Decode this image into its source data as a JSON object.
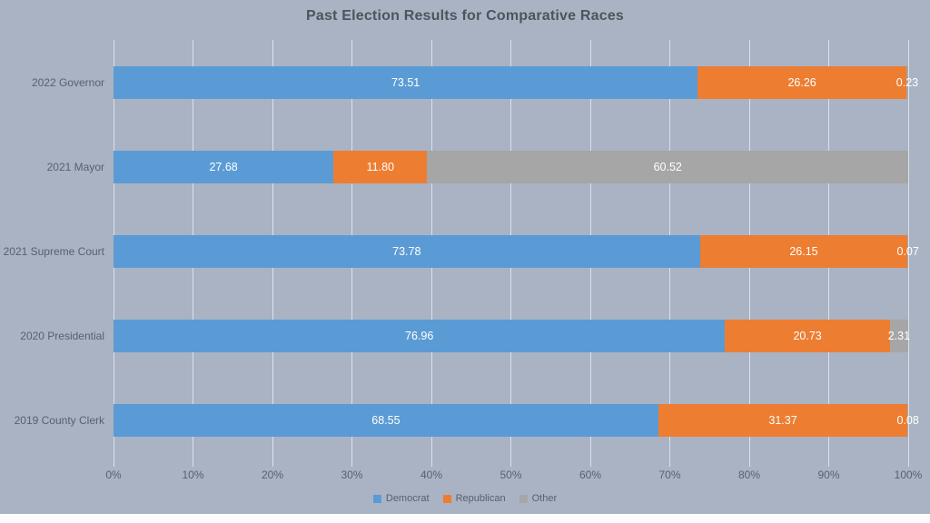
{
  "title": "Past Election Results for Comparative Races",
  "colors": {
    "background": "#a9b3c3",
    "gridline": "#dce1e9",
    "title_text": "#4d545e",
    "axis_text": "#596070",
    "value_text": "#ffffff",
    "democrat": "#5b9bd5",
    "republican": "#ed7d31",
    "other": "#a6a6a6",
    "footer_strip": "#fcfcfc"
  },
  "chart_data": {
    "type": "bar",
    "orientation": "horizontal-stacked",
    "title": "Past Election Results for Comparative Races",
    "categories": [
      "2022 Governor",
      "2021 Mayor",
      "2021 Supreme Court",
      "2020 Presidential",
      "2019 County Clerk"
    ],
    "series": [
      {
        "name": "Democrat",
        "color": "#5b9bd5",
        "values": [
          73.51,
          27.68,
          73.78,
          76.96,
          68.55
        ],
        "labels": [
          "73.51",
          "27.68",
          "73.78",
          "76.96",
          "68.55"
        ]
      },
      {
        "name": "Republican",
        "color": "#ed7d31",
        "values": [
          26.26,
          11.8,
          26.15,
          20.73,
          31.37
        ],
        "labels": [
          "26.26",
          "11.80",
          "26.15",
          "20.73",
          "31.37"
        ]
      },
      {
        "name": "Other",
        "color": "#a6a6a6",
        "values": [
          0.23,
          60.52,
          0.07,
          2.31,
          0.08
        ],
        "labels": [
          "0.23",
          "60.52",
          "0.07",
          "2.31",
          "0.08"
        ]
      }
    ],
    "x_axis": {
      "min": 0,
      "max": 100,
      "ticks": [
        "0%",
        "10%",
        "20%",
        "30%",
        "40%",
        "50%",
        "60%",
        "70%",
        "80%",
        "90%",
        "100%"
      ]
    },
    "legend": {
      "position": "bottom",
      "entries": [
        "Democrat",
        "Republican",
        "Other"
      ]
    },
    "grid": true
  }
}
